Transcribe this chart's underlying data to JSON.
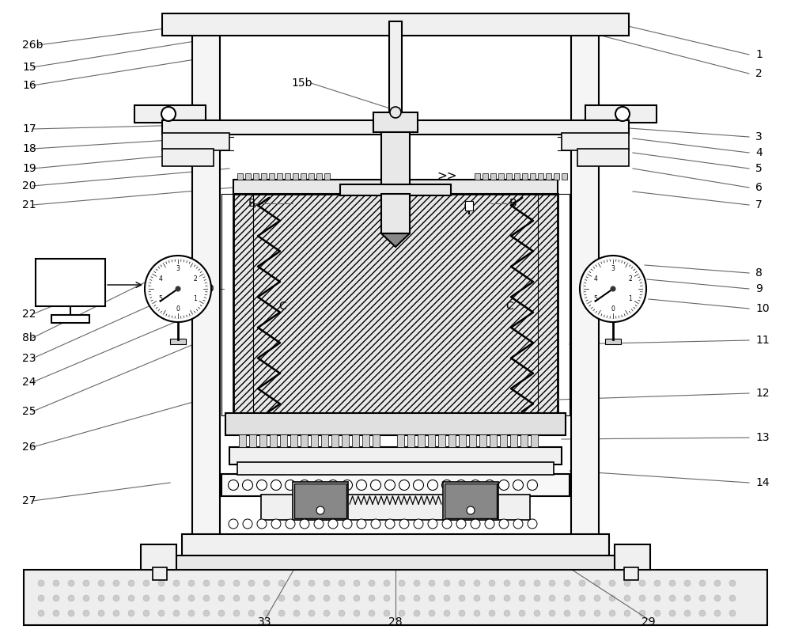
{
  "bg": "#ffffff",
  "lc": "#000000",
  "gray_dark": "#555555",
  "gray_med": "#888888",
  "gray_light": "#cccccc",
  "gray_fill": "#aaaaaa",
  "dark_block": "#666666",
  "hatch_fill": "#e8e8e8",
  "figw": 10.0,
  "figh": 8.05,
  "dpi": 100,
  "right_labels": [
    [
      "1",
      955,
      736
    ],
    [
      "2",
      955,
      712
    ],
    [
      "3",
      955,
      632
    ],
    [
      "4",
      955,
      612
    ],
    [
      "5",
      955,
      592
    ],
    [
      "6",
      955,
      568
    ],
    [
      "7",
      955,
      546
    ],
    [
      "8",
      955,
      460
    ],
    [
      "9",
      955,
      440
    ],
    [
      "10",
      955,
      415
    ],
    [
      "11",
      955,
      375
    ],
    [
      "12",
      955,
      308
    ],
    [
      "13",
      955,
      252
    ],
    [
      "14",
      955,
      195
    ]
  ],
  "left_labels": [
    [
      "26b",
      28,
      748
    ],
    [
      "15",
      28,
      720
    ],
    [
      "16",
      28,
      697
    ],
    [
      "17",
      28,
      642
    ],
    [
      "18",
      28,
      617
    ],
    [
      "19",
      28,
      592
    ],
    [
      "20",
      28,
      570
    ],
    [
      "21",
      28,
      546
    ],
    [
      "22",
      28,
      408
    ],
    [
      "8b",
      28,
      378
    ],
    [
      "23",
      28,
      352
    ],
    [
      "24",
      28,
      322
    ],
    [
      "25",
      28,
      285
    ],
    [
      "26",
      28,
      240
    ],
    [
      "27",
      28,
      172
    ]
  ],
  "bot_labels": [
    [
      "33",
      335,
      12
    ],
    [
      "28",
      500,
      12
    ],
    [
      "29",
      820,
      12
    ]
  ]
}
